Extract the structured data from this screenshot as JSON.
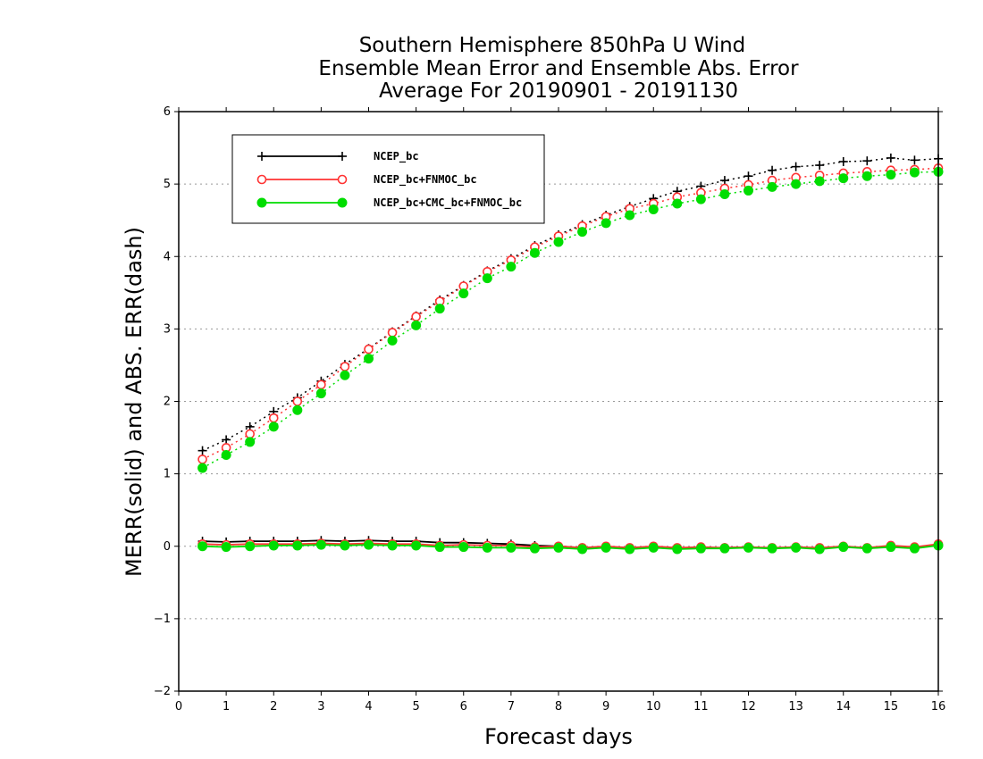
{
  "chart_data": {
    "type": "line",
    "title": [
      "Southern Hemisphere 850hPa U Wind",
      "Ensemble Mean Error and Ensemble Abs. Error",
      "Average For 20190901 - 20191130"
    ],
    "xlabel": "Forecast days",
    "ylabel": "MERR(solid) and ABS. ERR(dash)",
    "xlim": [
      0,
      16
    ],
    "ylim": [
      -2,
      6
    ],
    "xticks": [
      "0",
      "1",
      "2",
      "3",
      "4",
      "5",
      "6",
      "7",
      "8",
      "9",
      "10",
      "11",
      "12",
      "13",
      "14",
      "15",
      "16"
    ],
    "yticks": [
      "-2",
      "-1",
      "0",
      "1",
      "2",
      "3",
      "4",
      "5",
      "6"
    ],
    "grid": "horizontal dotted",
    "legend_position": "top-left",
    "x": [
      0.5,
      1,
      1.5,
      2,
      2.5,
      3,
      3.5,
      4,
      4.5,
      5,
      5.5,
      6,
      6.5,
      7,
      7.5,
      8,
      8.5,
      9,
      9.5,
      10,
      10.5,
      11,
      11.5,
      12,
      12.5,
      13,
      13.5,
      14,
      14.5,
      15,
      15.5,
      16
    ],
    "series": [
      {
        "name": "NCEP_bc",
        "color": "#000000",
        "marker": "plus",
        "abs_err": [
          1.32,
          1.47,
          1.65,
          1.86,
          2.05,
          2.28,
          2.51,
          2.73,
          2.96,
          3.18,
          3.4,
          3.6,
          3.8,
          3.97,
          4.15,
          4.3,
          4.44,
          4.57,
          4.69,
          4.8,
          4.9,
          4.97,
          5.05,
          5.11,
          5.19,
          5.24,
          5.26,
          5.31,
          5.32,
          5.36,
          5.33,
          5.35
        ],
        "mean_err": [
          0.07,
          0.06,
          0.07,
          0.07,
          0.07,
          0.08,
          0.07,
          0.08,
          0.07,
          0.07,
          0.05,
          0.05,
          0.04,
          0.03,
          0.01,
          0.0,
          -0.02,
          -0.01,
          -0.03,
          -0.01,
          -0.03,
          -0.02,
          -0.02,
          -0.01,
          -0.03,
          -0.01,
          -0.03,
          0.0,
          -0.03,
          0.0,
          -0.02,
          0.02
        ]
      },
      {
        "name": "NCEP_bc+FNMOC_bc",
        "color": "#ff3333",
        "marker": "open-circle",
        "abs_err": [
          1.2,
          1.36,
          1.55,
          1.77,
          2.0,
          2.23,
          2.48,
          2.72,
          2.95,
          3.17,
          3.38,
          3.59,
          3.79,
          3.95,
          4.13,
          4.28,
          4.42,
          4.55,
          4.66,
          4.73,
          4.82,
          4.88,
          4.94,
          4.99,
          5.05,
          5.09,
          5.12,
          5.15,
          5.17,
          5.19,
          5.2,
          5.22
        ],
        "mean_err": [
          0.03,
          0.02,
          0.03,
          0.03,
          0.03,
          0.04,
          0.03,
          0.04,
          0.03,
          0.03,
          0.01,
          0.02,
          0.01,
          0.01,
          -0.01,
          0.0,
          -0.02,
          0.0,
          -0.02,
          0.0,
          -0.02,
          -0.01,
          -0.02,
          -0.01,
          -0.02,
          -0.01,
          -0.02,
          0.0,
          -0.02,
          0.01,
          -0.01,
          0.03
        ]
      },
      {
        "name": "NCEP_bc+CMC_bc+FNMOC_bc",
        "color": "#00dd00",
        "marker": "filled-circle",
        "abs_err": [
          1.08,
          1.26,
          1.44,
          1.65,
          1.88,
          2.11,
          2.36,
          2.59,
          2.84,
          3.05,
          3.28,
          3.49,
          3.7,
          3.86,
          4.05,
          4.2,
          4.34,
          4.46,
          4.57,
          4.65,
          4.73,
          4.79,
          4.86,
          4.91,
          4.96,
          5.0,
          5.04,
          5.08,
          5.11,
          5.13,
          5.16,
          5.17
        ],
        "mean_err": [
          0.0,
          -0.01,
          0.0,
          0.01,
          0.01,
          0.02,
          0.01,
          0.02,
          0.01,
          0.01,
          -0.01,
          -0.01,
          -0.02,
          -0.02,
          -0.03,
          -0.02,
          -0.04,
          -0.02,
          -0.04,
          -0.02,
          -0.04,
          -0.03,
          -0.03,
          -0.02,
          -0.03,
          -0.02,
          -0.04,
          -0.01,
          -0.03,
          -0.01,
          -0.03,
          0.01
        ]
      }
    ]
  }
}
